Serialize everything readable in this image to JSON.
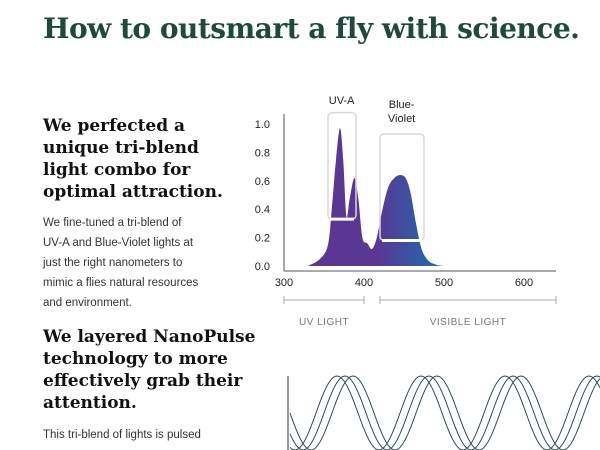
{
  "colors": {
    "brand": "#1d4a3c",
    "uv": "#5b3794",
    "violet": "#2a5fa8",
    "teal": "#12a39c",
    "axis": "#555555",
    "waves": "#2d4a5c"
  },
  "headline": "How to outsmart a fly with science.",
  "section1": {
    "heading_lines": [
      "We perfected a",
      "unique tri-blend",
      "light combo for",
      "optimal attraction."
    ],
    "body_lines": [
      "We fine-tuned a tri-blend of",
      "UV-A and Blue-Violet lights at",
      "just the right nanometers to",
      "mimic a flies natural resources",
      "and environment."
    ]
  },
  "section2": {
    "heading_lines": [
      "We layered NanoPulse",
      "technology to more",
      "effectively grab their",
      "attention."
    ],
    "body_lines": [
      "This tri-blend of lights is pulsed"
    ]
  },
  "chart_data": {
    "type": "area",
    "x": [
      330,
      345,
      355,
      360,
      365,
      370,
      374,
      378,
      382,
      388,
      393,
      398,
      404,
      410,
      416,
      422,
      430,
      438,
      445,
      452,
      458,
      465,
      472,
      480,
      490,
      500
    ],
    "y": [
      0.0,
      0.05,
      0.15,
      0.42,
      0.75,
      0.97,
      0.75,
      0.35,
      0.47,
      0.62,
      0.47,
      0.2,
      0.16,
      0.12,
      0.2,
      0.37,
      0.55,
      0.62,
      0.64,
      0.62,
      0.52,
      0.3,
      0.12,
      0.04,
      0.01,
      0.0
    ],
    "xlim": [
      300,
      640
    ],
    "ylim": [
      0,
      1.0
    ],
    "xticks": [
      "300",
      "400",
      "500",
      "600"
    ],
    "xtick_values": [
      300,
      400,
      500,
      600
    ],
    "yticks": [
      "0.0",
      "0.2",
      "0.4",
      "0.6",
      "0.8",
      "1.0"
    ],
    "ytick_values": [
      0,
      0.2,
      0.4,
      0.6,
      0.8,
      1.0
    ],
    "annotations": [
      "UV-A",
      "Blue-\nViolet"
    ],
    "ranges": [
      {
        "label": "UV LIGHT",
        "from": 300,
        "to": 400
      },
      {
        "label": "VISIBLE LIGHT",
        "from": 420,
        "to": 640
      }
    ],
    "callouts": [
      {
        "label": "UV-A",
        "from": 355,
        "to": 390,
        "ymin": 0.33,
        "ymax": 1.08
      },
      {
        "label": "Blue-Violet",
        "from": 420,
        "to": 475,
        "ymin": 0.18,
        "ymax": 0.93
      }
    ]
  }
}
